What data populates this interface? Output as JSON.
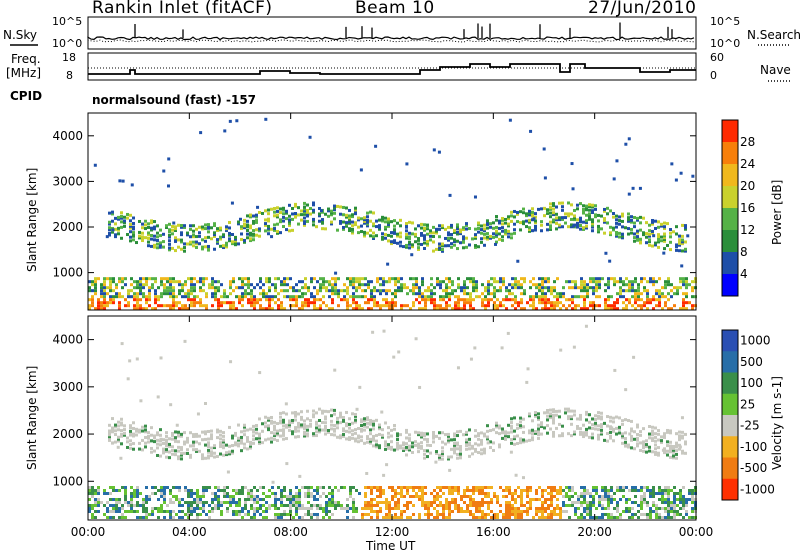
{
  "header": {
    "station": "Rankin Inlet (fitACF)",
    "beam": "Beam 10",
    "date": "27/Jun/2010"
  },
  "top_panels": {
    "nsky_label": "N.Sky",
    "nsky_tick_hi": "10^5",
    "nsky_tick_lo": "10^0",
    "nsearch_label": "N.Search",
    "nsearch_tick_hi": "10^5",
    "nsearch_tick_lo": "10^0",
    "freq_label_1": "Freq.",
    "freq_label_2": "[MHz]",
    "freq_tick_hi": "18",
    "freq_tick_lo": "8",
    "nave_label": "Nave",
    "nave_tick_hi": "60",
    "nave_tick_lo": "0",
    "cpid_label": "CPID",
    "cpid_text": "normalsound (fast) -157"
  },
  "chart_data": [
    {
      "type": "heatmap",
      "name": "power",
      "ylabel": "Slant Range [km]",
      "ylim": [
        180,
        4500
      ],
      "yticks": [
        "1000",
        "2000",
        "3000",
        "4000"
      ],
      "colorbar_label": "Power [dB]",
      "colorbar_ticks": [
        "4",
        "8",
        "12",
        "16",
        "20",
        "24",
        "28"
      ],
      "colors": [
        "#0000ff",
        "#1e4fa8",
        "#2a8e3a",
        "#55b247",
        "#c9d12d",
        "#f0b81c",
        "#f77f0a",
        "#ff2a00"
      ]
    },
    {
      "type": "heatmap",
      "name": "velocity",
      "ylabel": "Slant Range [km]",
      "ylim": [
        180,
        4500
      ],
      "yticks": [
        "1000",
        "2000",
        "3000",
        "4000"
      ],
      "colorbar_label": "Velocity [m s-1]",
      "colorbar_ticks": [
        "1000",
        "500",
        "100",
        "25",
        "-25",
        "-100",
        "-500",
        "-1000"
      ],
      "colors": [
        "#2a4fb3",
        "#276ea8",
        "#3a8f4a",
        "#66c233",
        "#c8c8c0",
        "#f2b020",
        "#f07c12",
        "#ff3000"
      ]
    }
  ],
  "xaxis": {
    "label": "Time UT",
    "ticks": [
      "00:00",
      "04:00",
      "08:00",
      "12:00",
      "16:00",
      "20:00",
      "00:00"
    ]
  }
}
